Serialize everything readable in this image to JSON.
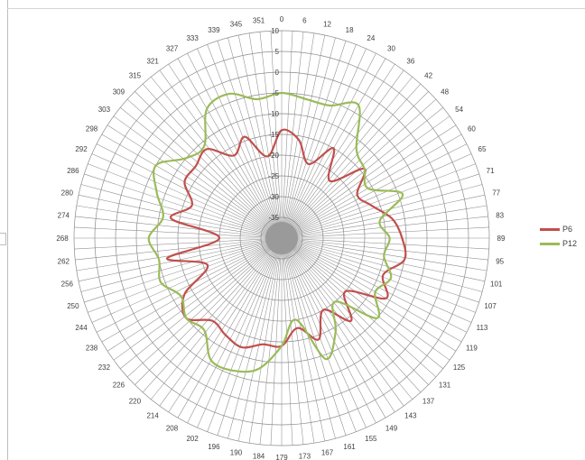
{
  "chart_data": {
    "type": "radar",
    "title": "",
    "angle_labels": [
      "0",
      "6",
      "12",
      "18",
      "24",
      "30",
      "36",
      "42",
      "48",
      "54",
      "60",
      "65",
      "71",
      "77",
      "83",
      "89",
      "95",
      "101",
      "107",
      "113",
      "119",
      "125",
      "131",
      "137",
      "143",
      "149",
      "155",
      "161",
      "167",
      "173",
      "179",
      "184",
      "190",
      "196",
      "202",
      "208",
      "214",
      "220",
      "226",
      "232",
      "238",
      "244",
      "250",
      "256",
      "262",
      "268",
      "274",
      "280",
      "286",
      "292",
      "298",
      "303",
      "309",
      "315",
      "321",
      "327",
      "333",
      "339",
      "345",
      "351"
    ],
    "radial_ticks": [
      "10",
      "5",
      "0",
      "-5",
      "-10",
      "-15",
      "-20",
      "-25",
      "-30",
      "-35"
    ],
    "radial_range": [
      -40,
      10
    ],
    "grid": true,
    "legend_position": "right",
    "series": [
      {
        "name": "P6",
        "color": "#c0504d",
        "points": [
          {
            "angle": 0,
            "value": -14
          },
          {
            "angle": 10,
            "value": -16
          },
          {
            "angle": 20,
            "value": -21
          },
          {
            "angle": 30,
            "value": -15
          },
          {
            "angle": 40,
            "value": -22
          },
          {
            "angle": 50,
            "value": -14
          },
          {
            "angle": 60,
            "value": -19
          },
          {
            "angle": 70,
            "value": -17
          },
          {
            "angle": 80,
            "value": -13
          },
          {
            "angle": 90,
            "value": -11
          },
          {
            "angle": 100,
            "value": -10
          },
          {
            "angle": 110,
            "value": -14
          },
          {
            "angle": 120,
            "value": -11
          },
          {
            "angle": 130,
            "value": -20
          },
          {
            "angle": 140,
            "value": -14
          },
          {
            "angle": 150,
            "value": -20
          },
          {
            "angle": 160,
            "value": -14
          },
          {
            "angle": 170,
            "value": -18
          },
          {
            "angle": 180,
            "value": -14
          },
          {
            "angle": 190,
            "value": -14
          },
          {
            "angle": 200,
            "value": -12
          },
          {
            "angle": 210,
            "value": -13
          },
          {
            "angle": 220,
            "value": -14
          },
          {
            "angle": 230,
            "value": -10
          },
          {
            "angle": 240,
            "value": -13
          },
          {
            "angle": 250,
            "value": -21
          },
          {
            "angle": 260,
            "value": -12
          },
          {
            "angle": 270,
            "value": -25
          },
          {
            "angle": 280,
            "value": -13
          },
          {
            "angle": 290,
            "value": -17
          },
          {
            "angle": 300,
            "value": -13
          },
          {
            "angle": 310,
            "value": -13
          },
          {
            "angle": 320,
            "value": -12
          },
          {
            "angle": 330,
            "value": -17
          },
          {
            "angle": 340,
            "value": -14
          },
          {
            "angle": 350,
            "value": -20
          }
        ]
      },
      {
        "name": "P12",
        "color": "#9bbb59",
        "points": [
          {
            "angle": 0,
            "value": -5
          },
          {
            "angle": 10,
            "value": -6
          },
          {
            "angle": 20,
            "value": -6
          },
          {
            "angle": 30,
            "value": -3
          },
          {
            "angle": 40,
            "value": -12
          },
          {
            "angle": 50,
            "value": -14
          },
          {
            "angle": 60,
            "value": -16
          },
          {
            "angle": 70,
            "value": -9
          },
          {
            "angle": 80,
            "value": -16
          },
          {
            "angle": 90,
            "value": -14
          },
          {
            "angle": 100,
            "value": -15
          },
          {
            "angle": 110,
            "value": -12
          },
          {
            "angle": 120,
            "value": -14
          },
          {
            "angle": 130,
            "value": -10
          },
          {
            "angle": 140,
            "value": -20
          },
          {
            "angle": 150,
            "value": -14
          },
          {
            "angle": 160,
            "value": -9
          },
          {
            "angle": 170,
            "value": -20
          },
          {
            "angle": 180,
            "value": -14
          },
          {
            "angle": 190,
            "value": -8
          },
          {
            "angle": 200,
            "value": -6
          },
          {
            "angle": 210,
            "value": -6
          },
          {
            "angle": 220,
            "value": -11
          },
          {
            "angle": 230,
            "value": -10
          },
          {
            "angle": 240,
            "value": -12
          },
          {
            "angle": 250,
            "value": -9
          },
          {
            "angle": 260,
            "value": -10
          },
          {
            "angle": 270,
            "value": -8
          },
          {
            "angle": 280,
            "value": -11
          },
          {
            "angle": 290,
            "value": -8
          },
          {
            "angle": 300,
            "value": -5
          },
          {
            "angle": 310,
            "value": -10
          },
          {
            "angle": 320,
            "value": -11
          },
          {
            "angle": 330,
            "value": -4
          },
          {
            "angle": 340,
            "value": -3
          },
          {
            "angle": 350,
            "value": -6
          }
        ]
      }
    ]
  }
}
